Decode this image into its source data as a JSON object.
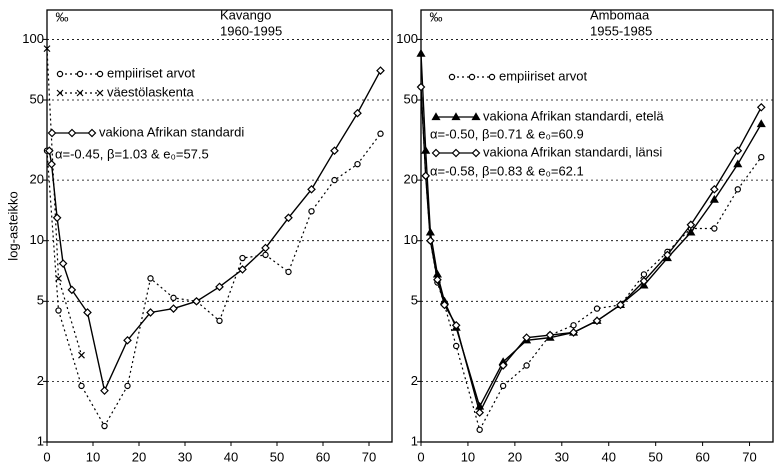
{
  "chart_data": [
    {
      "type": "line",
      "title": "Kavango",
      "subtitle": "1960-1995",
      "unit_label": "‰",
      "y_label": "log-asteikko",
      "log_y": true,
      "grid": true,
      "xlim": [
        0,
        75
      ],
      "ylim": [
        1,
        140
      ],
      "xticks": [
        0,
        10,
        20,
        30,
        40,
        50,
        60,
        70
      ],
      "yticks": [
        1,
        2,
        5,
        10,
        20,
        50,
        100
      ],
      "annotations": [
        "α=-0.45, β=1.03 & e₀=57.5"
      ],
      "series": [
        {
          "name": "empiiriset arvot",
          "color": "#000000",
          "marker": "circle",
          "dashed": true,
          "x": [
            0,
            2.5,
            7.5,
            12.5,
            17.5,
            22.5,
            27.5,
            32.5,
            37.5,
            42.5,
            47.5,
            52.5,
            57.5,
            62.5,
            67.5,
            72.5
          ],
          "values": [
            28,
            4.5,
            1.9,
            1.2,
            1.9,
            6.5,
            5.2,
            5,
            4,
            8.2,
            8.5,
            7,
            14,
            20,
            24,
            34
          ]
        },
        {
          "name": "väestölaskenta",
          "color": "#000000",
          "marker": "x",
          "dashed": true,
          "x": [
            0,
            2.5,
            7.5
          ],
          "values": [
            90,
            6.5,
            2.7
          ]
        },
        {
          "name": "vakiona Afrikan standardi",
          "color": "#000000",
          "marker": "diamond",
          "dashed": false,
          "x": [
            0.5,
            1,
            2.2,
            3.5,
            5.4,
            8.8,
            12.5,
            17.5,
            22.5,
            27.5,
            32.5,
            37.5,
            42.5,
            47.5,
            52.5,
            57.5,
            62.5,
            67.5,
            72.5
          ],
          "values": [
            28,
            24,
            13,
            7.7,
            5.7,
            4.4,
            1.8,
            3.2,
            4.4,
            4.6,
            5,
            5.9,
            7.2,
            9.2,
            13,
            18,
            28,
            43,
            70
          ]
        }
      ]
    },
    {
      "type": "line",
      "title": "Ambomaa",
      "subtitle": "1955-1985",
      "unit_label": "‰",
      "log_y": true,
      "grid": true,
      "xlim": [
        0,
        75
      ],
      "ylim": [
        1,
        140
      ],
      "xticks": [
        0,
        10,
        20,
        30,
        40,
        50,
        60,
        70
      ],
      "yticks": [
        1,
        2,
        5,
        10,
        20,
        50,
        100
      ],
      "annotations": [
        "α=-0.50, β=0.71 & e₀=60.9",
        "α=-0.58, β=0.83 & e₀=62.1"
      ],
      "series": [
        {
          "name": "empiiriset arvot",
          "color": "#000000",
          "marker": "circle",
          "dashed": true,
          "x": [
            0,
            1,
            2,
            3.5,
            5,
            7.5,
            12.5,
            17.5,
            22.5,
            27.5,
            32.5,
            37.5,
            42.5,
            47.5,
            52.5,
            57.5,
            62.5,
            67.5,
            72.5
          ],
          "values": [
            58,
            21,
            10,
            6.2,
            4.8,
            3,
            1.15,
            1.9,
            2.4,
            3.4,
            3.8,
            4.6,
            4.8,
            6.8,
            8.8,
            11.5,
            11.5,
            18,
            26
          ]
        },
        {
          "name": "vakiona Afrikan standardi, etelä",
          "color": "#000000",
          "marker": "triangle",
          "dashed": false,
          "x": [
            0,
            1,
            2,
            3.5,
            5,
            7.5,
            12.5,
            17.5,
            22.5,
            27.5,
            32.5,
            37.5,
            42.5,
            47.5,
            52.5,
            57.5,
            62.5,
            67.5,
            72.5
          ],
          "values": [
            85,
            28,
            11,
            6.8,
            5,
            3.7,
            1.5,
            2.5,
            3.2,
            3.3,
            3.5,
            4,
            4.8,
            6,
            8.2,
            11,
            16,
            24,
            38
          ]
        },
        {
          "name": "vakiona Afrikan standardi, länsi",
          "color": "#000000",
          "marker": "diamond",
          "dashed": false,
          "x": [
            0,
            1,
            2,
            3.5,
            5,
            7.5,
            12.5,
            17.5,
            22.5,
            27.5,
            32.5,
            37.5,
            42.5,
            47.5,
            52.5,
            57.5,
            62.5,
            67.5,
            72.5
          ],
          "values": [
            58,
            21,
            10,
            6.4,
            4.8,
            3.8,
            1.4,
            2.4,
            3.3,
            3.4,
            3.5,
            4,
            4.8,
            6.3,
            8.5,
            12,
            18,
            28,
            46
          ]
        }
      ]
    }
  ]
}
